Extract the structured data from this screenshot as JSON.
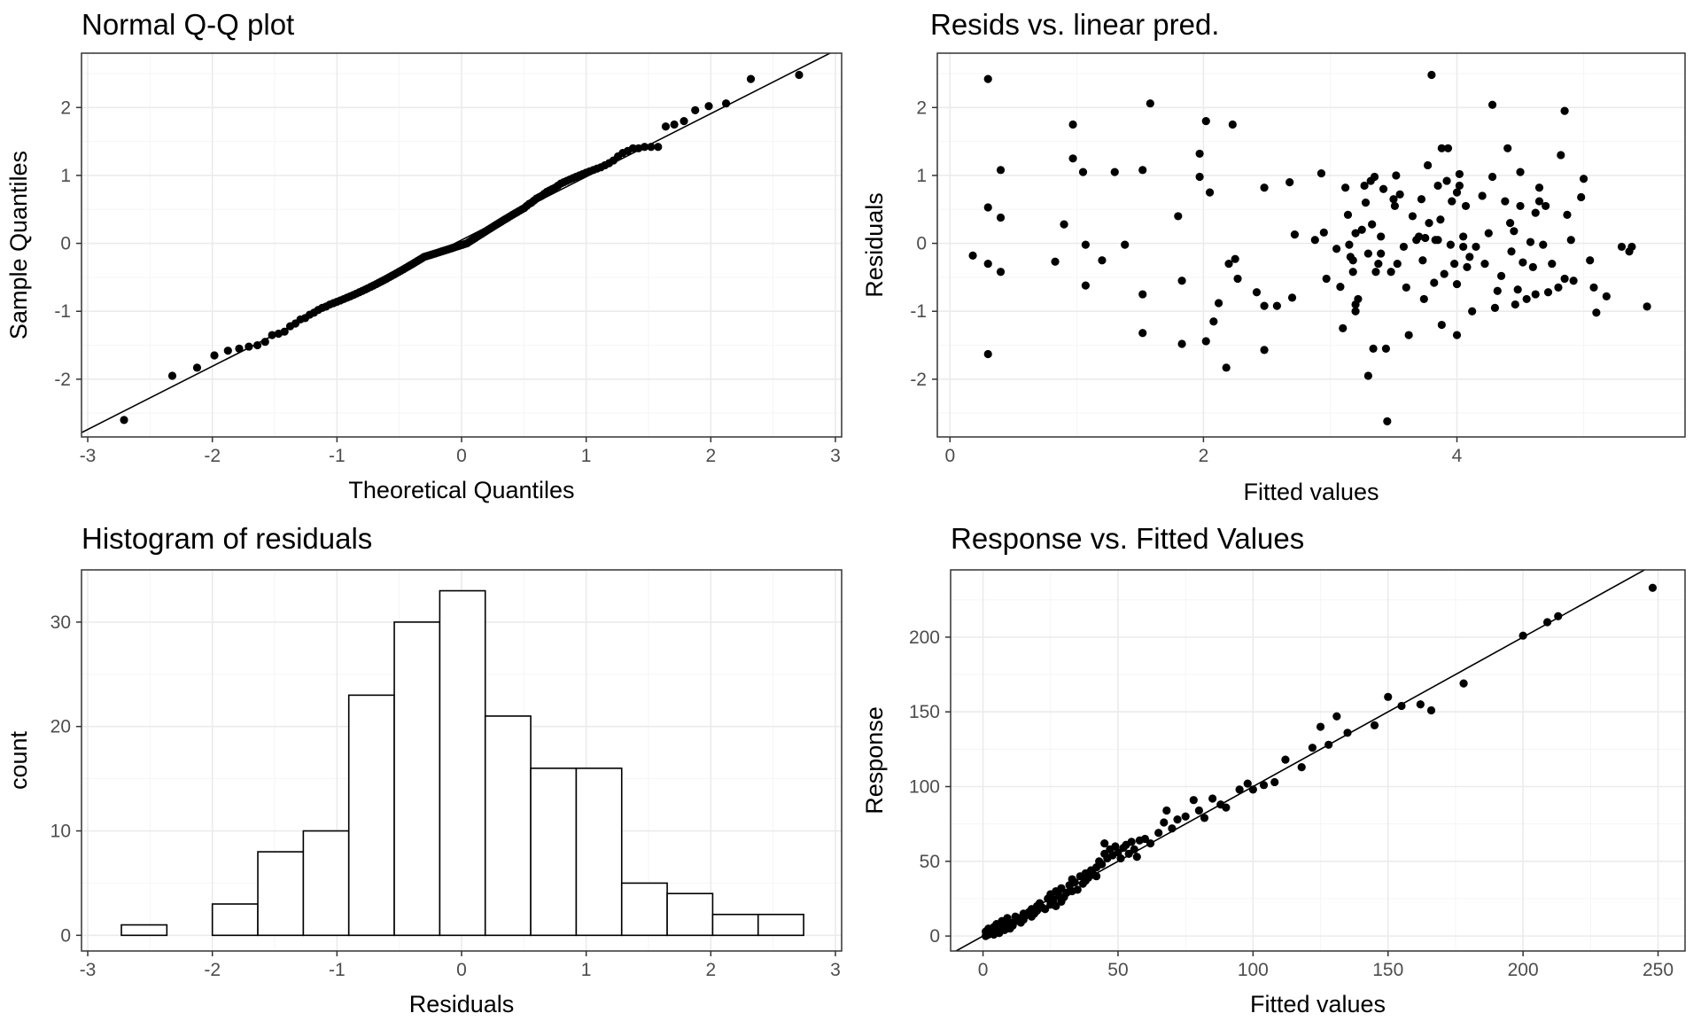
{
  "chart_data": [
    {
      "type": "scatter",
      "title": "Normal Q-Q plot",
      "xlabel": "Theoretical Quantiles",
      "ylabel": "Sample Quantiles",
      "xlim": [
        -3.05,
        3.05
      ],
      "ylim": [
        -2.85,
        2.8
      ],
      "xticks": [
        "-3",
        "-2",
        "-1",
        "0",
        "1",
        "2",
        "3"
      ],
      "yticks": [
        "-2",
        "-1",
        "0",
        "1",
        "2"
      ],
      "grid": true,
      "reference_line": {
        "intercept": 0.05,
        "slope": 0.93
      },
      "sample_quantiles": [
        -2.6,
        -1.95,
        -1.83,
        -1.65,
        -1.58,
        -1.55,
        -1.52,
        -1.5,
        -1.45,
        -1.35,
        -1.33,
        -1.3,
        -1.22,
        -1.18,
        -1.12,
        -1.1,
        -1.05,
        -1.02,
        -0.98,
        -0.95,
        -0.93,
        -0.9,
        -0.88,
        -0.86,
        -0.84,
        -0.82,
        -0.8,
        -0.78,
        -0.76,
        -0.74,
        -0.72,
        -0.7,
        -0.68,
        -0.66,
        -0.64,
        -0.62,
        -0.6,
        -0.58,
        -0.56,
        -0.54,
        -0.52,
        -0.5,
        -0.48,
        -0.46,
        -0.44,
        -0.42,
        -0.4,
        -0.38,
        -0.36,
        -0.34,
        -0.32,
        -0.3,
        -0.28,
        -0.26,
        -0.24,
        -0.22,
        -0.2,
        -0.19,
        -0.18,
        -0.17,
        -0.16,
        -0.15,
        -0.14,
        -0.13,
        -0.12,
        -0.11,
        -0.1,
        -0.09,
        -0.08,
        -0.07,
        -0.06,
        -0.05,
        -0.04,
        -0.03,
        -0.02,
        -0.01,
        0.0,
        0.02,
        0.04,
        0.06,
        0.08,
        0.1,
        0.12,
        0.14,
        0.16,
        0.18,
        0.2,
        0.22,
        0.24,
        0.26,
        0.28,
        0.3,
        0.32,
        0.34,
        0.36,
        0.38,
        0.4,
        0.42,
        0.44,
        0.46,
        0.48,
        0.5,
        0.52,
        0.55,
        0.58,
        0.6,
        0.63,
        0.66,
        0.68,
        0.7,
        0.73,
        0.76,
        0.78,
        0.8,
        0.82,
        0.85,
        0.88,
        0.9,
        0.92,
        0.94,
        0.96,
        0.98,
        1.0,
        1.02,
        1.04,
        1.06,
        1.08,
        1.1,
        1.12,
        1.15,
        1.18,
        1.22,
        1.28,
        1.33,
        1.36,
        1.4,
        1.4,
        1.42,
        1.42,
        1.42,
        1.72,
        1.75,
        1.8,
        1.96,
        2.02,
        2.06,
        2.42,
        2.48
      ]
    },
    {
      "type": "scatter",
      "title": "Resids vs. linear pred.",
      "xlabel": "Fitted values",
      "ylabel": "Residuals",
      "xlim": [
        -0.1,
        5.8
      ],
      "ylim": [
        -2.85,
        2.8
      ],
      "xticks": [
        "0",
        "2",
        "4"
      ],
      "yticks": [
        "-2",
        "-1",
        "0",
        "1",
        "2"
      ],
      "grid": true,
      "points": [
        [
          0.18,
          -0.18
        ],
        [
          0.3,
          2.42
        ],
        [
          0.3,
          0.53
        ],
        [
          0.3,
          -0.3
        ],
        [
          0.3,
          -1.63
        ],
        [
          0.4,
          1.08
        ],
        [
          0.4,
          0.38
        ],
        [
          0.4,
          -0.42
        ],
        [
          0.83,
          -0.27
        ],
        [
          0.9,
          0.28
        ],
        [
          0.97,
          1.75
        ],
        [
          0.97,
          1.25
        ],
        [
          1.05,
          1.05
        ],
        [
          1.07,
          -0.02
        ],
        [
          1.07,
          -0.62
        ],
        [
          1.2,
          -0.25
        ],
        [
          1.3,
          1.05
        ],
        [
          1.38,
          -0.02
        ],
        [
          1.52,
          1.08
        ],
        [
          1.52,
          -0.75
        ],
        [
          1.52,
          -1.32
        ],
        [
          1.58,
          2.06
        ],
        [
          1.8,
          0.4
        ],
        [
          1.83,
          -0.55
        ],
        [
          1.83,
          -1.48
        ],
        [
          1.97,
          1.32
        ],
        [
          1.97,
          0.98
        ],
        [
          2.02,
          1.8
        ],
        [
          2.02,
          -1.44
        ],
        [
          2.05,
          0.75
        ],
        [
          2.08,
          -1.15
        ],
        [
          2.12,
          -0.88
        ],
        [
          2.18,
          -1.83
        ],
        [
          2.2,
          -0.3
        ],
        [
          2.23,
          1.75
        ],
        [
          2.25,
          -0.23
        ],
        [
          2.27,
          -0.52
        ],
        [
          2.42,
          -0.72
        ],
        [
          2.48,
          0.82
        ],
        [
          2.48,
          -0.92
        ],
        [
          2.48,
          -1.57
        ],
        [
          2.58,
          -0.92
        ],
        [
          2.68,
          0.9
        ],
        [
          2.7,
          -0.8
        ],
        [
          2.72,
          0.13
        ],
        [
          2.88,
          0.05
        ],
        [
          2.93,
          1.03
        ],
        [
          2.95,
          0.16
        ],
        [
          2.97,
          -0.52
        ],
        [
          3.05,
          -0.08
        ],
        [
          3.08,
          -0.64
        ],
        [
          3.1,
          -1.25
        ],
        [
          3.12,
          0.82
        ],
        [
          3.14,
          0.42
        ],
        [
          3.15,
          -0.02
        ],
        [
          3.16,
          -0.2
        ],
        [
          3.18,
          -0.42
        ],
        [
          3.18,
          -0.25
        ],
        [
          3.2,
          0.15
        ],
        [
          3.2,
          -0.9
        ],
        [
          3.2,
          -1.0
        ],
        [
          3.22,
          -0.82
        ],
        [
          3.25,
          0.2
        ],
        [
          3.27,
          0.85
        ],
        [
          3.28,
          0.6
        ],
        [
          3.3,
          -0.15
        ],
        [
          3.3,
          -1.95
        ],
        [
          3.32,
          0.92
        ],
        [
          3.33,
          0.28
        ],
        [
          3.34,
          -1.55
        ],
        [
          3.35,
          0.98
        ],
        [
          3.36,
          -0.42
        ],
        [
          3.38,
          -0.3
        ],
        [
          3.4,
          0.1
        ],
        [
          3.4,
          -0.15
        ],
        [
          3.42,
          0.8
        ],
        [
          3.44,
          -1.55
        ],
        [
          3.45,
          -2.62
        ],
        [
          3.48,
          -0.42
        ],
        [
          3.5,
          0.65
        ],
        [
          3.51,
          0.55
        ],
        [
          3.52,
          1.0
        ],
        [
          3.53,
          -0.3
        ],
        [
          3.55,
          0.72
        ],
        [
          3.58,
          -0.05
        ],
        [
          3.6,
          -0.65
        ],
        [
          3.62,
          -1.35
        ],
        [
          3.65,
          0.4
        ],
        [
          3.68,
          0.05
        ],
        [
          3.7,
          0.1
        ],
        [
          3.72,
          0.65
        ],
        [
          3.73,
          -0.25
        ],
        [
          3.74,
          -0.82
        ],
        [
          3.75,
          0.08
        ],
        [
          3.77,
          1.15
        ],
        [
          3.78,
          0.3
        ],
        [
          3.8,
          2.48
        ],
        [
          3.82,
          -0.58
        ],
        [
          3.83,
          0.05
        ],
        [
          3.85,
          0.85
        ],
        [
          3.85,
          0.05
        ],
        [
          3.87,
          0.35
        ],
        [
          3.88,
          1.4
        ],
        [
          3.88,
          -1.2
        ],
        [
          3.9,
          -0.45
        ],
        [
          3.92,
          0.92
        ],
        [
          3.93,
          1.4
        ],
        [
          3.95,
          -0.02
        ],
        [
          3.96,
          0.62
        ],
        [
          3.98,
          -0.3
        ],
        [
          4.0,
          -0.6
        ],
        [
          4.0,
          -1.35
        ],
        [
          4.0,
          0.75
        ],
        [
          4.02,
          0.85
        ],
        [
          4.02,
          1.02
        ],
        [
          4.05,
          0.1
        ],
        [
          4.05,
          -0.05
        ],
        [
          4.07,
          0.55
        ],
        [
          4.08,
          -0.35
        ],
        [
          4.1,
          -0.2
        ],
        [
          4.12,
          -1.0
        ],
        [
          4.15,
          -0.05
        ],
        [
          4.2,
          0.7
        ],
        [
          4.22,
          -0.3
        ],
        [
          4.25,
          0.15
        ],
        [
          4.28,
          2.04
        ],
        [
          4.28,
          0.98
        ],
        [
          4.3,
          -0.95
        ],
        [
          4.32,
          -0.7
        ],
        [
          4.35,
          -0.48
        ],
        [
          4.38,
          0.62
        ],
        [
          4.4,
          1.4
        ],
        [
          4.42,
          0.3
        ],
        [
          4.43,
          -0.12
        ],
        [
          4.45,
          0.18
        ],
        [
          4.46,
          -0.9
        ],
        [
          4.48,
          -0.68
        ],
        [
          4.5,
          0.55
        ],
        [
          4.5,
          1.05
        ],
        [
          4.52,
          -0.28
        ],
        [
          4.55,
          -0.82
        ],
        [
          4.58,
          0.02
        ],
        [
          4.6,
          -0.35
        ],
        [
          4.62,
          -0.75
        ],
        [
          4.62,
          0.45
        ],
        [
          4.65,
          0.82
        ],
        [
          4.65,
          0.62
        ],
        [
          4.68,
          -0.02
        ],
        [
          4.7,
          0.55
        ],
        [
          4.72,
          -0.72
        ],
        [
          4.75,
          -0.3
        ],
        [
          4.8,
          -0.65
        ],
        [
          4.82,
          1.3
        ],
        [
          4.85,
          -0.52
        ],
        [
          4.85,
          1.95
        ],
        [
          4.87,
          0.42
        ],
        [
          4.9,
          0.05
        ],
        [
          4.92,
          -0.55
        ],
        [
          4.98,
          0.68
        ],
        [
          5.0,
          0.95
        ],
        [
          5.05,
          -0.25
        ],
        [
          5.08,
          -0.65
        ],
        [
          5.1,
          -1.02
        ],
        [
          5.18,
          -0.78
        ],
        [
          5.3,
          -0.05
        ],
        [
          5.36,
          -0.12
        ],
        [
          5.38,
          -0.05
        ],
        [
          5.5,
          -0.93
        ]
      ]
    },
    {
      "type": "bar",
      "title": "Histogram of residuals",
      "xlabel": "Residuals",
      "ylabel": "count",
      "xlim": [
        -3.05,
        3.05
      ],
      "ylim": [
        -1.5,
        35
      ],
      "xticks": [
        "-3",
        "-2",
        "-1",
        "0",
        "1",
        "2",
        "3"
      ],
      "yticks": [
        "0",
        "10",
        "20",
        "30"
      ],
      "grid": true,
      "bin_edges": [
        -2.73,
        -2.365,
        -2.0,
        -1.635,
        -1.27,
        -0.905,
        -0.54,
        -0.175,
        0.19,
        0.555,
        0.92,
        1.285,
        1.65,
        2.015,
        2.38,
        2.745
      ],
      "counts": [
        1,
        0,
        3,
        8,
        10,
        23,
        30,
        33,
        21,
        16,
        16,
        5,
        4,
        2,
        2
      ]
    },
    {
      "type": "scatter",
      "title": "Response vs. Fitted Values",
      "xlabel": "Fitted values",
      "ylabel": "Response",
      "xlim": [
        -12,
        260
      ],
      "ylim": [
        -10,
        245
      ],
      "xticks": [
        "0",
        "50",
        "100",
        "150",
        "200",
        "250"
      ],
      "yticks": [
        "0",
        "50",
        "100",
        "150",
        "200"
      ],
      "grid": true,
      "reference_line": {
        "intercept": 0,
        "slope": 1
      },
      "points": [
        [
          1,
          0
        ],
        [
          1,
          3
        ],
        [
          2,
          1
        ],
        [
          2,
          5
        ],
        [
          3,
          2
        ],
        [
          3,
          4
        ],
        [
          4,
          6
        ],
        [
          4,
          1
        ],
        [
          5,
          3
        ],
        [
          5,
          8
        ],
        [
          6,
          5
        ],
        [
          6,
          2
        ],
        [
          7,
          6
        ],
        [
          7,
          10
        ],
        [
          8,
          4
        ],
        [
          8,
          8
        ],
        [
          9,
          6
        ],
        [
          9,
          12
        ],
        [
          10,
          9
        ],
        [
          10,
          5
        ],
        [
          11,
          7
        ],
        [
          12,
          10
        ],
        [
          12,
          13
        ],
        [
          13,
          12
        ],
        [
          14,
          9
        ],
        [
          15,
          15
        ],
        [
          15,
          11
        ],
        [
          16,
          14
        ],
        [
          17,
          16
        ],
        [
          18,
          13
        ],
        [
          18,
          18
        ],
        [
          19,
          15
        ],
        [
          20,
          20
        ],
        [
          20,
          17
        ],
        [
          21,
          22
        ],
        [
          22,
          19
        ],
        [
          23,
          18
        ],
        [
          24,
          25
        ],
        [
          25,
          21
        ],
        [
          25,
          28
        ],
        [
          26,
          24
        ],
        [
          27,
          30
        ],
        [
          27,
          20
        ],
        [
          28,
          27
        ],
        [
          29,
          32
        ],
        [
          29,
          23
        ],
        [
          30,
          26
        ],
        [
          31,
          29
        ],
        [
          32,
          34
        ],
        [
          33,
          30
        ],
        [
          33,
          38
        ],
        [
          34,
          36
        ],
        [
          35,
          31
        ],
        [
          36,
          40
        ],
        [
          37,
          35
        ],
        [
          38,
          42
        ],
        [
          38,
          37
        ],
        [
          39,
          39
        ],
        [
          40,
          44
        ],
        [
          41,
          41
        ],
        [
          42,
          46
        ],
        [
          42,
          40
        ],
        [
          43,
          50
        ],
        [
          44,
          48
        ],
        [
          45,
          55
        ],
        [
          45,
          62
        ],
        [
          46,
          52
        ],
        [
          47,
          58
        ],
        [
          48,
          54
        ],
        [
          49,
          60
        ],
        [
          50,
          56
        ],
        [
          51,
          52
        ],
        [
          52,
          59
        ],
        [
          53,
          61
        ],
        [
          54,
          55
        ],
        [
          55,
          63
        ],
        [
          56,
          58
        ],
        [
          57,
          53
        ],
        [
          58,
          64
        ],
        [
          60,
          65
        ],
        [
          62,
          62
        ],
        [
          65,
          69
        ],
        [
          67,
          76
        ],
        [
          68,
          84
        ],
        [
          70,
          72
        ],
        [
          72,
          78
        ],
        [
          75,
          80
        ],
        [
          78,
          91
        ],
        [
          80,
          84
        ],
        [
          82,
          79
        ],
        [
          85,
          92
        ],
        [
          88,
          88
        ],
        [
          90,
          86
        ],
        [
          95,
          98
        ],
        [
          98,
          102
        ],
        [
          100,
          98
        ],
        [
          104,
          101
        ],
        [
          108,
          103
        ],
        [
          112,
          118
        ],
        [
          118,
          113
        ],
        [
          122,
          126
        ],
        [
          125,
          140
        ],
        [
          128,
          128
        ],
        [
          131,
          147
        ],
        [
          135,
          136
        ],
        [
          145,
          141
        ],
        [
          150,
          160
        ],
        [
          155,
          154
        ],
        [
          162,
          155
        ],
        [
          166,
          151
        ],
        [
          178,
          169
        ],
        [
          200,
          201
        ],
        [
          209,
          210
        ],
        [
          213,
          214
        ],
        [
          248,
          233
        ]
      ]
    }
  ]
}
